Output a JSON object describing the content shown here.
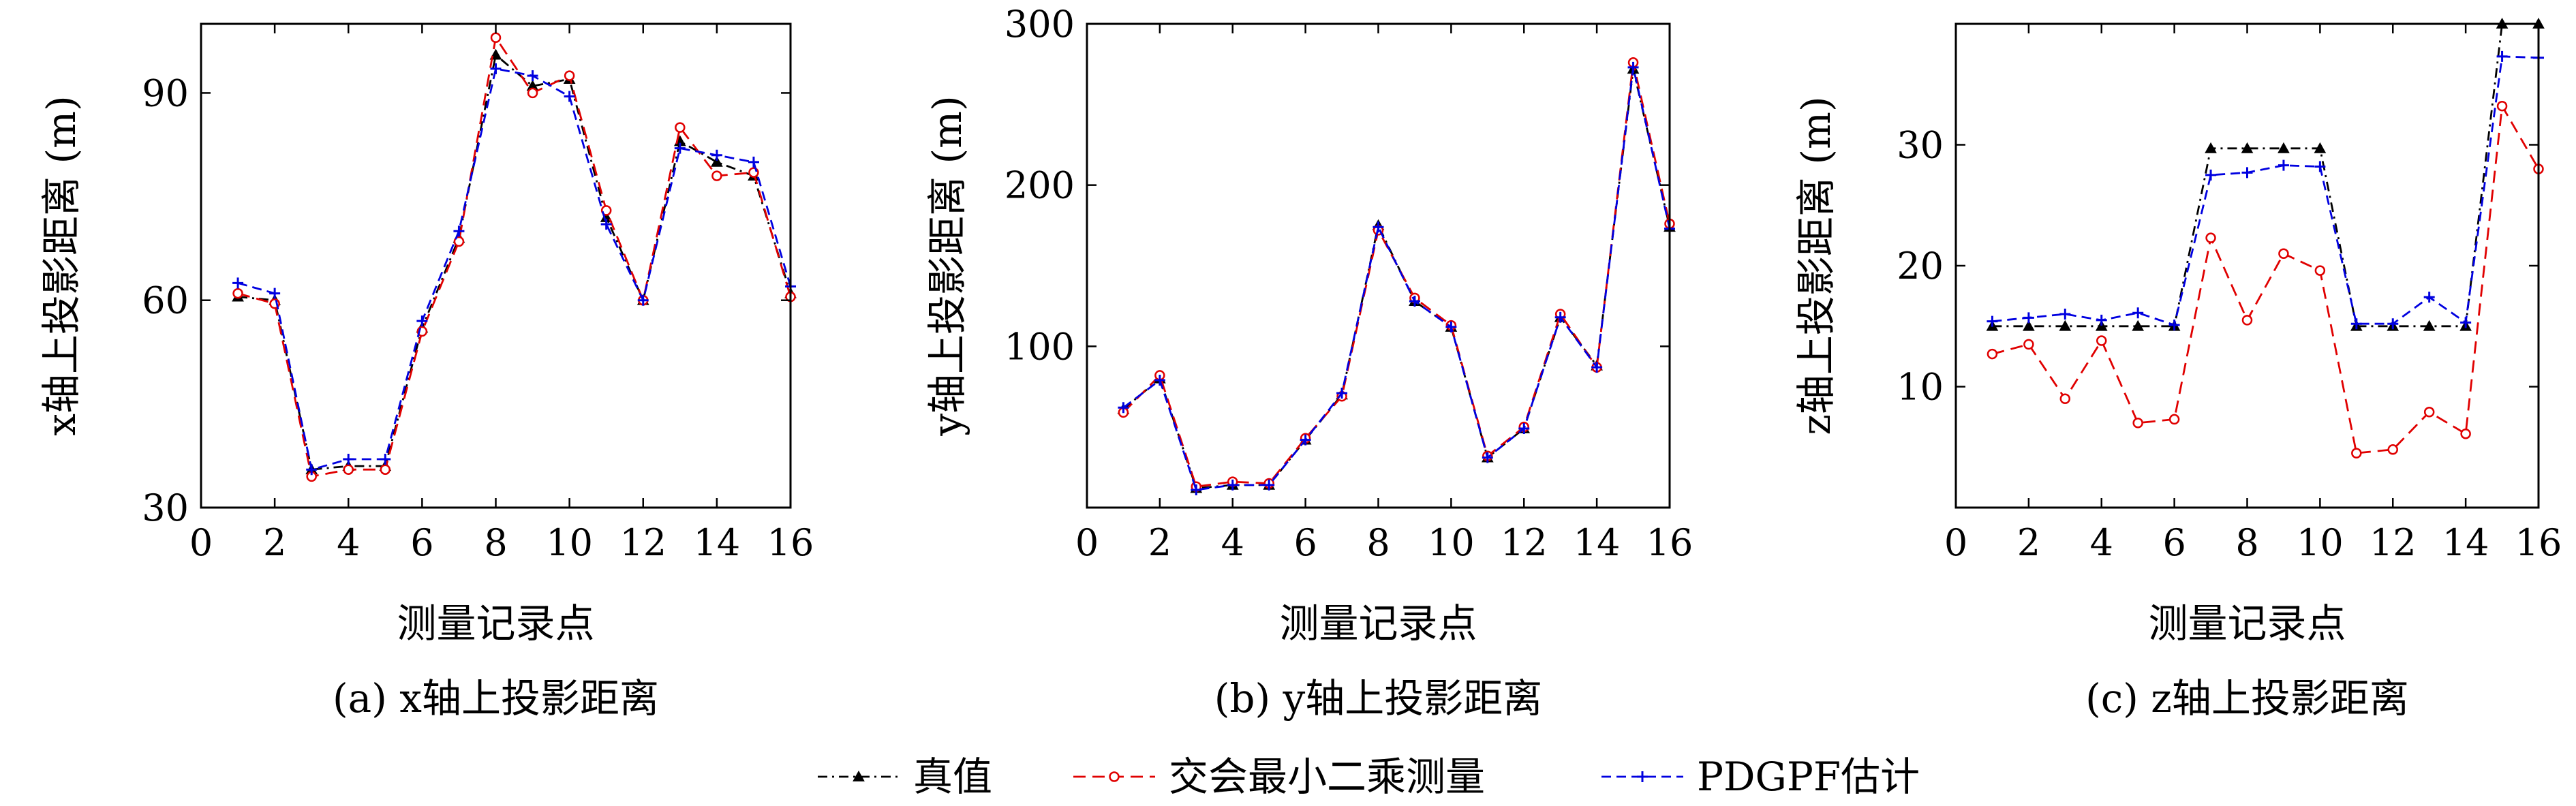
{
  "legend": {
    "entries": [
      {
        "label": "真值",
        "color": "#000000",
        "dash": "dashdot",
        "marker": "triangle"
      },
      {
        "label": "交会最小二乘测量",
        "color": "#e00000",
        "dash": "dashed",
        "marker": "circle"
      },
      {
        "label": "PDGPF估计",
        "color": "#0000e0",
        "dash": "dashed",
        "marker": "plus"
      }
    ]
  },
  "chart_data": [
    {
      "type": "line",
      "caption": "(a) x轴上投影距离",
      "xlabel": "测量记录点",
      "ylabel": "x轴上投影距离 (m)",
      "xlim": [
        0,
        16
      ],
      "ylim": [
        30,
        100
      ],
      "xticks": [
        0,
        2,
        4,
        6,
        8,
        10,
        12,
        14,
        16
      ],
      "yticks": [
        30,
        60,
        90
      ],
      "x": [
        1,
        2,
        3,
        4,
        5,
        6,
        7,
        8,
        9,
        10,
        11,
        12,
        13,
        14,
        15,
        16
      ],
      "series": [
        {
          "name": "真值",
          "values": [
            60.5,
            60,
            35.5,
            36,
            36,
            56,
            69,
            95.5,
            91,
            92,
            72,
            60,
            83,
            80,
            78,
            61
          ]
        },
        {
          "name": "交会最小二乘测量",
          "values": [
            61,
            59.5,
            34.5,
            35.5,
            35.5,
            55.5,
            68.5,
            98,
            90,
            92.5,
            73,
            60,
            85,
            78,
            78.5,
            60.5
          ]
        },
        {
          "name": "PDGPF估计",
          "values": [
            62.5,
            61,
            35.5,
            37,
            37,
            57,
            70,
            93.5,
            92.5,
            89.5,
            71,
            60,
            82,
            81,
            80,
            62
          ]
        }
      ]
    },
    {
      "type": "line",
      "caption": "(b) y轴上投影距离",
      "xlabel": "测量记录点",
      "ylabel": "y轴上投影距离 (m)",
      "xlim": [
        0,
        16
      ],
      "ylim": [
        0,
        300
      ],
      "xticks": [
        0,
        2,
        4,
        6,
        8,
        10,
        12,
        14,
        16
      ],
      "yticks": [
        100,
        200,
        300
      ],
      "x": [
        1,
        2,
        3,
        4,
        5,
        6,
        7,
        8,
        9,
        10,
        11,
        12,
        13,
        14,
        15,
        16
      ],
      "series": [
        {
          "name": "真值",
          "values": [
            61,
            80,
            12,
            14,
            14,
            42,
            70,
            175,
            128,
            112,
            31,
            49,
            118,
            88,
            272,
            174
          ]
        },
        {
          "name": "交会最小二乘测量",
          "values": [
            59,
            82,
            13,
            16,
            15,
            43,
            69,
            172,
            130,
            113,
            32,
            50,
            120,
            87,
            276,
            176
          ]
        },
        {
          "name": "PDGPF估计",
          "values": [
            62,
            79,
            11,
            14,
            14,
            42,
            71,
            174,
            128,
            112,
            31,
            49,
            118,
            87,
            273,
            173
          ]
        }
      ]
    },
    {
      "type": "line",
      "caption": "(c) z轴上投影距离",
      "xlabel": "测量记录点",
      "ylabel": "z轴上投影距离 (m)",
      "xlim": [
        0,
        16
      ],
      "ylim": [
        0,
        40
      ],
      "xticks": [
        0,
        2,
        4,
        6,
        8,
        10,
        12,
        14,
        16
      ],
      "yticks": [
        10,
        20,
        30
      ],
      "x": [
        1,
        2,
        3,
        4,
        5,
        6,
        7,
        8,
        9,
        10,
        11,
        12,
        13,
        14,
        15,
        16
      ],
      "series": [
        {
          "name": "真值",
          "values": [
            15,
            15,
            15,
            15,
            15,
            15,
            29.7,
            29.7,
            29.7,
            29.7,
            15,
            15,
            15,
            15,
            40,
            40
          ]
        },
        {
          "name": "交会最小二乘测量",
          "values": [
            12.7,
            13.5,
            9,
            13.8,
            7,
            7.3,
            22.3,
            15.5,
            21,
            19.6,
            4.5,
            4.8,
            7.9,
            6.1,
            33.2,
            28
          ]
        },
        {
          "name": "PDGPF估计",
          "values": [
            15.4,
            15.7,
            16,
            15.5,
            16.1,
            15.1,
            27.5,
            27.7,
            28.3,
            28.2,
            15.2,
            15.2,
            17.4,
            15.3,
            37.3,
            37.2
          ]
        }
      ]
    }
  ]
}
